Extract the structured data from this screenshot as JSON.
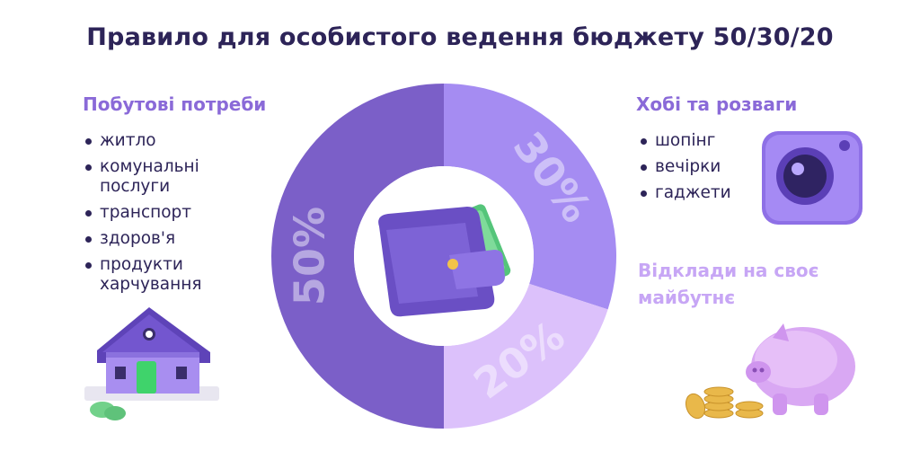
{
  "title": "Правило для особистого ведення бюджету 50/30/20",
  "colors": {
    "title": "#2d2458",
    "needs": "#7b5fc8",
    "wants": "#a58cf2",
    "savings": "#dcc1fb",
    "heading_needs": "#8a6ad8",
    "heading_savings": "#c7a6f5"
  },
  "categories": [
    {
      "heading": "Побутові потреби",
      "items": [
        "житло",
        "комунальні послуги",
        "транспорт",
        "здоров'я",
        "продукти харчування"
      ],
      "icon": "house-icon"
    },
    {
      "heading": "Хобі та розваги",
      "items": [
        "шопінг",
        "вечірки",
        "гаджети"
      ],
      "icon": "camera-icon"
    },
    {
      "heading": "Відклади на своє майбутнє",
      "items": [],
      "icon": "piggy-bank-icon"
    }
  ],
  "center_icon": "wallet-icon",
  "chart_data": {
    "type": "pie",
    "variant": "donut",
    "series": [
      {
        "name": "Побутові потреби",
        "value": 50,
        "label": "50%",
        "color": "#7b5fc8"
      },
      {
        "name": "Хобі та розваги",
        "value": 30,
        "label": "30%",
        "color": "#a58cf2"
      },
      {
        "name": "Відклади на своє майбутнє",
        "value": 20,
        "label": "20%",
        "color": "#dcc1fb"
      }
    ]
  }
}
